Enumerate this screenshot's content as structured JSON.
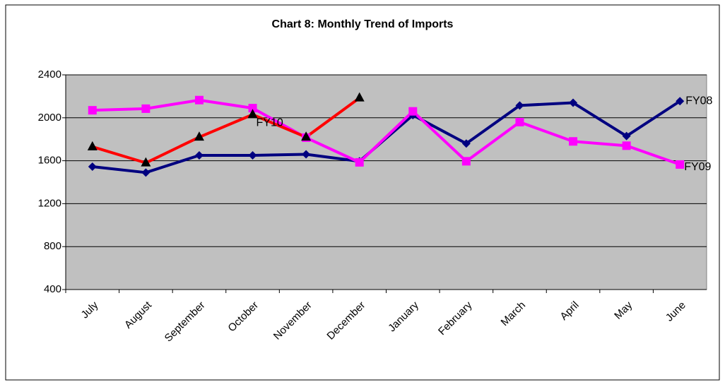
{
  "chart_data": {
    "type": "line",
    "title": "Chart 8: Monthly Trend of Imports",
    "categories": [
      "July",
      "August",
      "September",
      "October",
      "November",
      "December",
      "January",
      "February",
      "March",
      "April",
      "May",
      "June"
    ],
    "series": [
      {
        "name": "FY08",
        "color": "#000080",
        "marker": "diamond",
        "marker_color": "#000080",
        "values": [
          1545,
          1490,
          1650,
          1650,
          1660,
          1595,
          2025,
          1760,
          2115,
          2140,
          1830,
          2155
        ]
      },
      {
        "name": "FY09",
        "color": "#ff00ff",
        "marker": "square",
        "marker_color": "#ff00ff",
        "values": [
          2070,
          2085,
          2165,
          2090,
          1815,
          1585,
          2060,
          1595,
          1960,
          1780,
          1740,
          1565
        ]
      },
      {
        "name": "FY10",
        "color": "#ff0000",
        "marker": "triangle",
        "marker_color": "#000000",
        "values": [
          1730,
          1580,
          1820,
          2030,
          1820,
          2185,
          null,
          null,
          null,
          null,
          null,
          null
        ]
      }
    ],
    "ylim": [
      400,
      2400
    ],
    "yticks": [
      400,
      800,
      1200,
      1600,
      2000,
      2400
    ],
    "grid": true
  }
}
